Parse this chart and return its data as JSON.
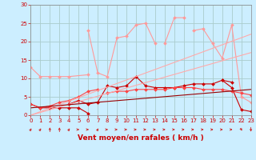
{
  "xlabel": "Vent moyen/en rafales ( km/h )",
  "xlim": [
    0,
    23
  ],
  "ylim": [
    0,
    30
  ],
  "yticks": [
    0,
    5,
    10,
    15,
    20,
    25,
    30
  ],
  "xticks": [
    0,
    1,
    2,
    3,
    4,
    5,
    6,
    7,
    8,
    9,
    10,
    11,
    12,
    13,
    14,
    15,
    16,
    17,
    18,
    19,
    20,
    21,
    22,
    23
  ],
  "background_color": "#cceeff",
  "grid_color": "#aacccc",
  "series": [
    {
      "x": [
        0,
        1,
        2,
        3,
        4,
        6
      ],
      "y": [
        13,
        10.5,
        10.5,
        10.5,
        10.5,
        11
      ],
      "color": "#ff9999",
      "linewidth": 0.8,
      "marker": "D",
      "markersize": 2.0
    },
    {
      "x": [
        6,
        7,
        8,
        9,
        10,
        11,
        12,
        13
      ],
      "y": [
        23,
        11.5,
        10.5,
        21,
        21.5,
        24.5,
        25,
        19.5
      ],
      "color": "#ff9999",
      "linewidth": 0.8,
      "marker": "D",
      "markersize": 2.0
    },
    {
      "x": [
        14,
        15,
        16
      ],
      "y": [
        19.5,
        26.5,
        26.5
      ],
      "color": "#ff9999",
      "linewidth": 0.8,
      "marker": "D",
      "markersize": 2.0
    },
    {
      "x": [
        17,
        18,
        19,
        20,
        21,
        22,
        23
      ],
      "y": [
        23,
        23.5,
        19.5,
        15.5,
        24.5,
        5,
        3.5
      ],
      "color": "#ff9999",
      "linewidth": 0.8,
      "marker": "D",
      "markersize": 2.0
    },
    {
      "x": [
        0,
        1,
        2,
        3,
        4,
        5,
        6
      ],
      "y": [
        3,
        2,
        2,
        2,
        2,
        2,
        0.5
      ],
      "color": "#cc0000",
      "linewidth": 0.8,
      "marker": "D",
      "markersize": 2.0
    },
    {
      "x": [
        4,
        5,
        6,
        7,
        8,
        9,
        10,
        11,
        12,
        13,
        14,
        15,
        16,
        17,
        18,
        19,
        20,
        21
      ],
      "y": [
        3,
        4,
        3,
        3.5,
        8,
        7.5,
        8,
        10.5,
        8,
        7.5,
        7.5,
        7.5,
        8,
        8.5,
        8.5,
        8.5,
        9.5,
        9
      ],
      "color": "#cc0000",
      "linewidth": 0.8,
      "marker": "D",
      "markersize": 2.0
    },
    {
      "x": [
        20,
        21,
        22,
        23
      ],
      "y": [
        9.5,
        7.5,
        1.5,
        1
      ],
      "color": "#cc0000",
      "linewidth": 0.8,
      "marker": "D",
      "markersize": 2.0
    },
    {
      "x": [
        0,
        1,
        2,
        3,
        4,
        5,
        6,
        7
      ],
      "y": [
        3,
        2,
        2.5,
        3.5,
        4,
        5,
        6.5,
        7
      ],
      "color": "#ff4444",
      "linewidth": 0.8,
      "marker": "D",
      "markersize": 2.0
    },
    {
      "x": [
        8,
        9,
        10,
        11,
        12,
        13,
        14,
        15,
        16,
        17,
        18,
        19,
        20,
        21,
        22,
        23
      ],
      "y": [
        6,
        6.5,
        6.5,
        7,
        7,
        7,
        7,
        7.5,
        7.5,
        7.5,
        7,
        7,
        7,
        6.5,
        6,
        5.5
      ],
      "color": "#ff4444",
      "linewidth": 0.8,
      "marker": "D",
      "markersize": 2.0
    },
    {
      "x": [
        0,
        23
      ],
      "y": [
        0,
        17
      ],
      "color": "#ffaaaa",
      "linewidth": 0.8,
      "marker": null,
      "markersize": 0
    },
    {
      "x": [
        0,
        23
      ],
      "y": [
        0,
        22
      ],
      "color": "#ffaaaa",
      "linewidth": 0.8,
      "marker": null,
      "markersize": 0
    },
    {
      "x": [
        0,
        23
      ],
      "y": [
        2,
        7
      ],
      "color": "#990000",
      "linewidth": 0.8,
      "marker": null,
      "markersize": 0
    }
  ],
  "arrow_angles": [
    45,
    45,
    90,
    90,
    45,
    0,
    0,
    45,
    0,
    0,
    0,
    0,
    0,
    0,
    0,
    0,
    0,
    0,
    0,
    0,
    0,
    0,
    -45,
    -90
  ],
  "arrow_color": "#cc2222",
  "tick_fontsize": 5,
  "label_fontsize": 6.5
}
